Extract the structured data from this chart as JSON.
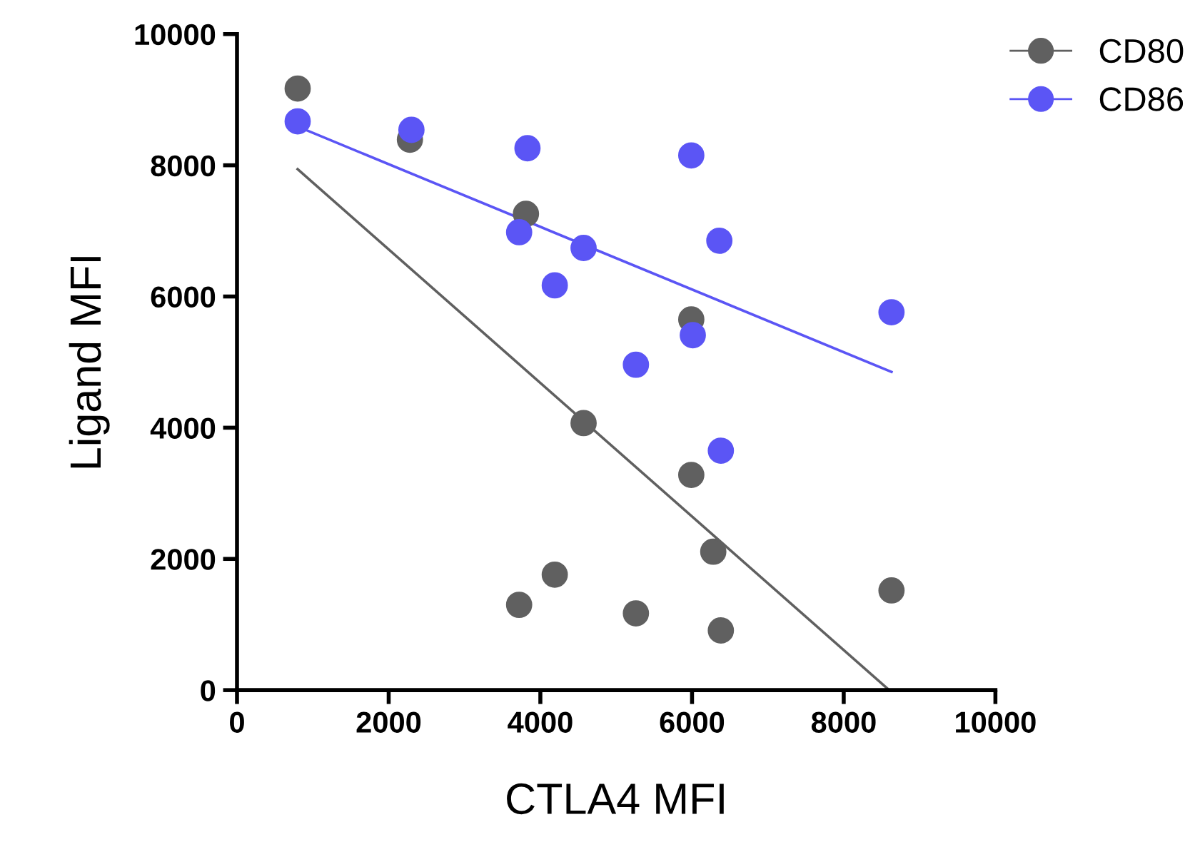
{
  "chart_data": {
    "type": "scatter",
    "xlabel": "CTLA4 MFI",
    "ylabel": "Ligand MFI",
    "xlim": [
      0,
      10000
    ],
    "ylim": [
      0,
      10000
    ],
    "xticks": [
      0,
      2000,
      4000,
      6000,
      8000,
      10000
    ],
    "yticks": [
      0,
      2000,
      4000,
      6000,
      8000,
      10000
    ],
    "grid": false,
    "legend": "top right",
    "marker": "circle",
    "series": [
      {
        "name": "CD80",
        "color": "#606060",
        "x": [
          800,
          2280,
          3810,
          4570,
          5990,
          5990,
          6280,
          3720,
          4190,
          5260,
          6380,
          8630
        ],
        "values": [
          9170,
          8390,
          7260,
          4070,
          5650,
          3280,
          2110,
          1300,
          1760,
          1170,
          910,
          1520
        ]
      },
      {
        "name": "CD86",
        "color": "#5b55f5",
        "x": [
          800,
          2300,
          3830,
          3720,
          4570,
          4190,
          5990,
          6010,
          5260,
          6360,
          6380,
          8630
        ],
        "values": [
          8670,
          8540,
          8260,
          6980,
          6740,
          6170,
          8150,
          5410,
          4960,
          6850,
          3650,
          5760
        ]
      },
      {
        "type": "line",
        "marker": "none",
        "color": "#606060",
        "x": [
          800,
          8600
        ],
        "values": [
          7940,
          0
        ]
      },
      {
        "type": "line",
        "marker": "none",
        "color": "#5b55f5",
        "x": [
          800,
          8630
        ],
        "values": [
          8590,
          4850
        ]
      }
    ]
  }
}
